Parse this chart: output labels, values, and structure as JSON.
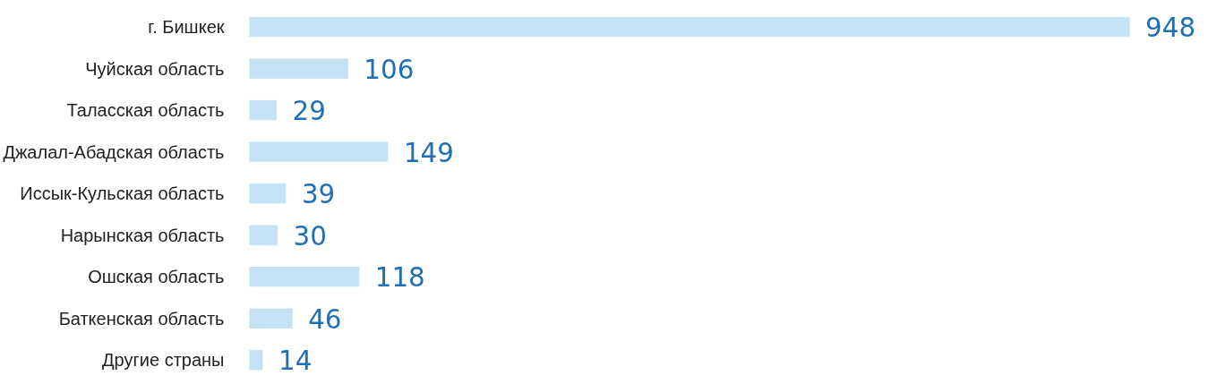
{
  "chart_data": {
    "type": "bar",
    "orientation": "horizontal",
    "categories": [
      "г. Бишкек",
      "Чуйская область",
      "Таласская область",
      "Джалал-Абадская область",
      "Иссык-Кульская область",
      "Нарынская область",
      "Ошская область",
      "Баткенская область",
      "Другие страны"
    ],
    "values": [
      948,
      106,
      29,
      149,
      39,
      30,
      118,
      46,
      14
    ],
    "color": "#c5e2f5",
    "data_labels": true,
    "tick_labels": "y",
    "grid": false
  }
}
